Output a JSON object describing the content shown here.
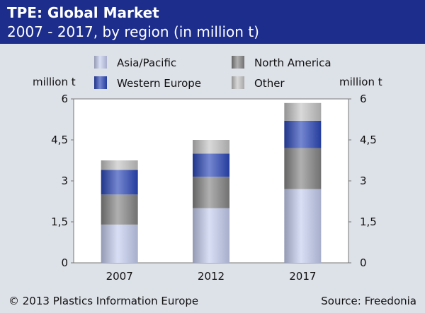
{
  "header": {
    "title": "TPE: Global Market",
    "subtitle": "2007 - 2017, by region (in million t)"
  },
  "footer": {
    "copyright": "© 2013 Plastics Information Europe",
    "source": "Source: Freedonia"
  },
  "colors": {
    "header_bg": "#1c2d8c",
    "page_bg": "#dde1e8",
    "Asia/Pacific": "#c5cdef",
    "North America": "#858585",
    "Western Europe": "#2a47b8",
    "Other": "#c4c4c4"
  },
  "chart_data": {
    "type": "bar",
    "stacked": true,
    "categories": [
      "2007",
      "2012",
      "2017"
    ],
    "series": [
      {
        "name": "Asia/Pacific",
        "values": [
          1.4,
          2.0,
          2.7
        ]
      },
      {
        "name": "North America",
        "values": [
          1.1,
          1.15,
          1.5
        ]
      },
      {
        "name": "Western Europe",
        "values": [
          0.9,
          0.85,
          1.0
        ]
      },
      {
        "name": "Other",
        "values": [
          0.35,
          0.5,
          0.65
        ]
      }
    ],
    "ylabel_left": "million t",
    "ylabel_right": "million t",
    "ylim": [
      0,
      6
    ],
    "yticks": [
      "0",
      "1,5",
      "3",
      "4,5",
      "6"
    ],
    "ytick_values": [
      0,
      1.5,
      3,
      4.5,
      6
    ],
    "grid": false,
    "legend_placement": "top"
  }
}
